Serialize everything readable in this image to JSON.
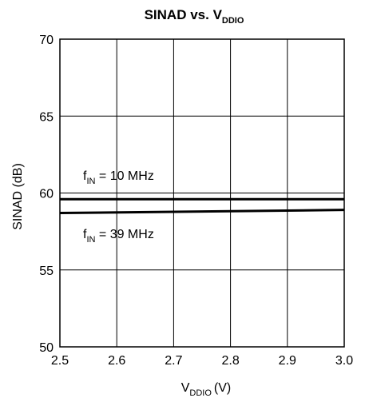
{
  "chart_data": {
    "type": "line",
    "title": "SINAD vs. V",
    "title_subscript": "DDIO",
    "xlabel": "V",
    "xlabel_subscript": "DDIO",
    "xlabel_unit": "(V)",
    "ylabel": "SINAD (dB)",
    "xlim": [
      2.5,
      3.0
    ],
    "ylim": [
      50,
      70
    ],
    "xticks": [
      "2.5",
      "2.6",
      "2.7",
      "2.8",
      "2.9",
      "3.0"
    ],
    "yticks": [
      "50",
      "55",
      "60",
      "65",
      "70"
    ],
    "grid": true,
    "series": [
      {
        "name": "f_IN = 10 MHz",
        "x": [
          2.5,
          3.0
        ],
        "y": [
          59.6,
          59.6
        ]
      },
      {
        "name": "f_IN = 39 MHz",
        "x": [
          2.5,
          3.0
        ],
        "y": [
          58.7,
          58.9
        ]
      }
    ],
    "annotations": [
      {
        "prefix": "f",
        "subscript": "IN",
        "text": " = 10 MHz"
      },
      {
        "prefix": "f",
        "subscript": "IN",
        "text": " = 39 MHz"
      }
    ]
  }
}
